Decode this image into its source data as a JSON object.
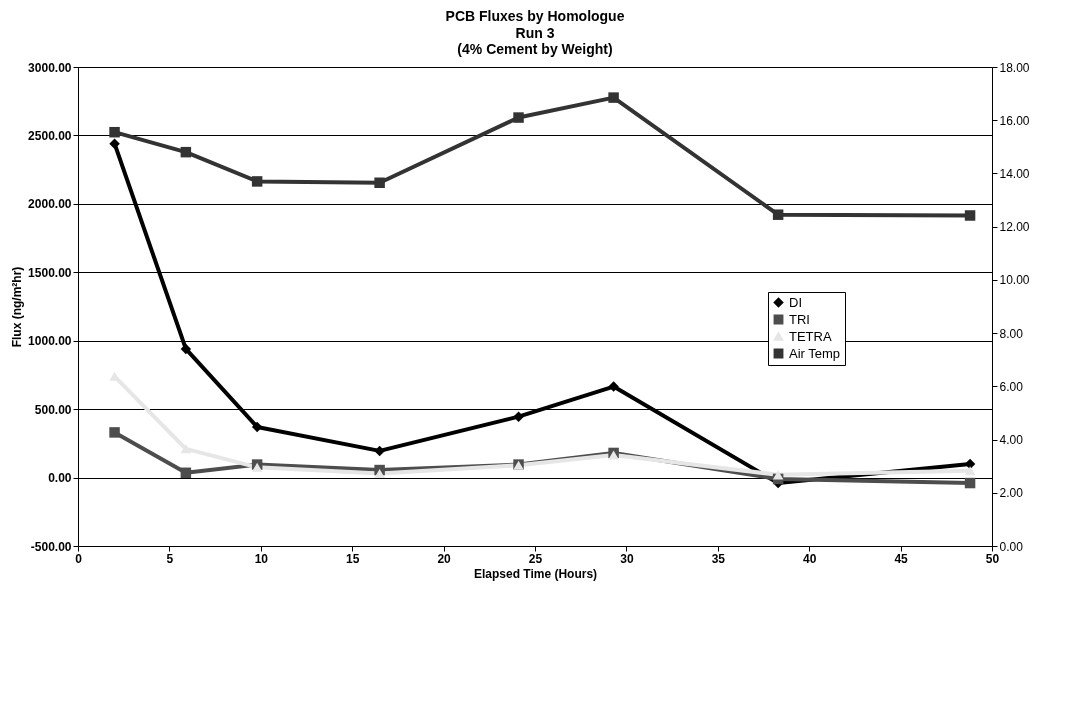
{
  "chart_data": {
    "type": "line",
    "title": "PCB Fluxes by Homologue",
    "subtitle": "Run 3\n(4% Cement by Weight)",
    "xlabel": "Elapsed Time (Hours)",
    "ylabel": "Flux (ng/m²hr)",
    "x": [
      2.0,
      5.9,
      9.8,
      16.5,
      24.1,
      29.3,
      38.3,
      48.8
    ],
    "series": [
      {
        "name": "DI",
        "color": "#000000",
        "marker": "diamond",
        "values": [
          2440,
          940,
          370,
          195,
          445,
          665,
          -40,
          100
        ]
      },
      {
        "name": "TRI",
        "color": "#4d4d4d",
        "marker": "square",
        "values": [
          330,
          35,
          95,
          55,
          95,
          180,
          -10,
          -40
        ]
      },
      {
        "name": "TETRA",
        "color": "#e6e6e6",
        "marker": "triangle",
        "values": [
          740,
          210,
          75,
          30,
          90,
          165,
          20,
          50
        ]
      },
      {
        "name": "Air Temp",
        "color": "#333333",
        "marker": "square",
        "axis": "y2",
        "values": [
          15.55,
          14.8,
          13.7,
          13.65,
          16.1,
          16.85,
          12.45,
          12.42
        ]
      }
    ],
    "xlim": [
      0,
      50
    ],
    "xticks": [
      0,
      5,
      10,
      15,
      20,
      25,
      30,
      35,
      40,
      45,
      50
    ],
    "ylim": [
      -500,
      3000
    ],
    "yticks": [
      {
        "value": -500,
        "label": "-500.00"
      },
      {
        "value": 0,
        "label": "0.00"
      },
      {
        "value": 500,
        "label": "500.00"
      },
      {
        "value": 1000,
        "label": "1000.00"
      },
      {
        "value": 1500,
        "label": "1500.00"
      },
      {
        "value": 2000,
        "label": "2000.00"
      },
      {
        "value": 2500,
        "label": "2500.00"
      },
      {
        "value": 3000,
        "label": "3000.00"
      }
    ],
    "y2lim": [
      0,
      18
    ],
    "y2ticks": [
      {
        "value": 0,
        "label": "0.00"
      },
      {
        "value": 2,
        "label": "2.00"
      },
      {
        "value": 4,
        "label": "4.00"
      },
      {
        "value": 6,
        "label": "6.00"
      },
      {
        "value": 8,
        "label": "8.00"
      },
      {
        "value": 10,
        "label": "10.00"
      },
      {
        "value": 12,
        "label": "12.00"
      },
      {
        "value": 14,
        "label": "14.00"
      },
      {
        "value": 16,
        "label": "16.00"
      },
      {
        "value": 18,
        "label": "18.00"
      }
    ],
    "grid": "y",
    "legend": "right",
    "line_style": "solid"
  }
}
